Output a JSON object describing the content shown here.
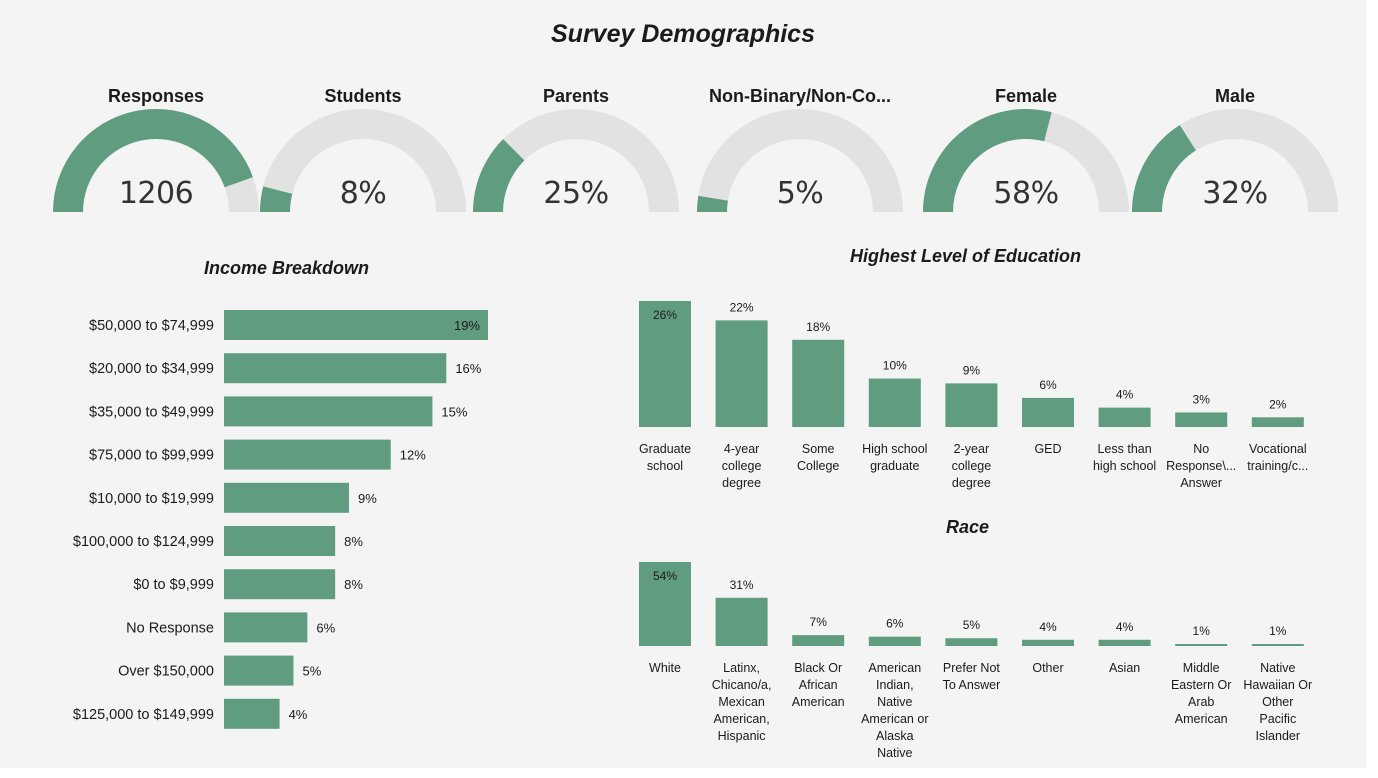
{
  "dashboard": {
    "title": "Survey Demographics"
  },
  "colors": {
    "accent": "#5f9c80",
    "track": "#e2e2e2",
    "text": "#1b1b1b"
  },
  "gauges": [
    {
      "title": "Responses",
      "value_text": "1206",
      "fill": 0.89
    },
    {
      "title": "Students",
      "value_text": "8%",
      "fill": 0.08
    },
    {
      "title": "Parents",
      "value_text": "25%",
      "fill": 0.25
    },
    {
      "title": "Non-Binary/Non-Co...",
      "value_text": "5%",
      "fill": 0.05
    },
    {
      "title": "Female",
      "value_text": "58%",
      "fill": 0.58
    },
    {
      "title": "Male",
      "value_text": "32%",
      "fill": 0.32
    }
  ],
  "chart_data": [
    {
      "id": "income",
      "type": "bar",
      "orientation": "horizontal",
      "title": "Income Breakdown",
      "categories": [
        "$50,000 to $74,999",
        "$20,000 to $34,999",
        "$35,000 to $49,999",
        "$75,000 to $99,999",
        "$10,000 to $19,999",
        "$100,000 to $124,999",
        "$0 to $9,999",
        "No Response",
        "Over $150,000",
        "$125,000 to $149,999"
      ],
      "values": [
        19,
        16,
        15,
        12,
        9,
        8,
        8,
        6,
        5,
        4
      ],
      "labels": [
        "19%",
        "16%",
        "15%",
        "12%",
        "9%",
        "8%",
        "8%",
        "6%",
        "5%",
        "4%"
      ],
      "xlabel": "",
      "ylabel": "",
      "xlim": [
        0,
        19
      ]
    },
    {
      "id": "education",
      "type": "bar",
      "orientation": "vertical",
      "title": "Highest Level of Education",
      "categories": [
        [
          "Graduate",
          "school"
        ],
        [
          "4-year",
          "college",
          "degree"
        ],
        [
          "Some",
          "College"
        ],
        [
          "High school",
          "graduate"
        ],
        [
          "2-year",
          "college",
          "degree"
        ],
        [
          "GED"
        ],
        [
          "Less than",
          "high school"
        ],
        [
          "No",
          "Response\\...",
          "Answer"
        ],
        [
          "Vocational",
          "training/c..."
        ]
      ],
      "values": [
        26,
        22,
        18,
        10,
        9,
        6,
        4,
        3,
        2
      ],
      "labels": [
        "26%",
        "22%",
        "18%",
        "10%",
        "9%",
        "6%",
        "4%",
        "3%",
        "2%"
      ],
      "xlabel": "",
      "ylabel": "",
      "ylim": [
        0,
        26
      ]
    },
    {
      "id": "race",
      "type": "bar",
      "orientation": "vertical",
      "title": "Race",
      "categories": [
        [
          "White"
        ],
        [
          "Latinx,",
          "Chicano/a,",
          "Mexican",
          "American,",
          "Hispanic"
        ],
        [
          "Black Or",
          "African",
          "American"
        ],
        [
          "American",
          "Indian,",
          "Native",
          "American or",
          "Alaska",
          "Native"
        ],
        [
          "Prefer Not",
          "To Answer"
        ],
        [
          "Other"
        ],
        [
          "Asian"
        ],
        [
          "Middle",
          "Eastern Or",
          "Arab",
          "American"
        ],
        [
          "Native",
          "Hawaiian Or",
          "Other",
          "Pacific",
          "Islander"
        ]
      ],
      "values": [
        54,
        31,
        7,
        6,
        5,
        4,
        4,
        1,
        1
      ],
      "labels": [
        "54%",
        "31%",
        "7%",
        "6%",
        "5%",
        "4%",
        "4%",
        "1%",
        "1%"
      ],
      "xlabel": "",
      "ylabel": "",
      "ylim": [
        0,
        54
      ]
    }
  ]
}
